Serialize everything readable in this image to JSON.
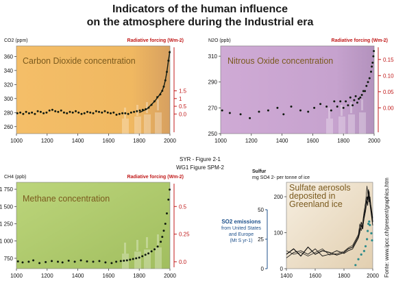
{
  "header": {
    "title_line1": "Indicators of the human influence",
    "title_line2": "on the atmosphere during the Industrial era"
  },
  "center_note": {
    "line1": "SYR - Figure 2-1",
    "line2": "WG1 Figure SPM-2"
  },
  "source_note": "Fonte: www.ipcc.ch/present/graphics.htm",
  "colors": {
    "co2_bg": "#f1b962",
    "n2o_bg": "#c7a3cf",
    "ch4_bg": "#b6cf72",
    "sulfate_bg": "#eddfc9",
    "forcing_axis": "#c01818",
    "emissions_axis": "#1c4f8a",
    "points": "#101a10"
  },
  "chart_data": [
    {
      "id": "co2",
      "type": "scatter",
      "title": "Carbon Dioxide concentration",
      "ylabel": "CO2 (ppm)",
      "ylabel_right": "Radiative forcing (Wm-2)",
      "xlim": [
        1000,
        2000
      ],
      "ylim": [
        250,
        375
      ],
      "x_ticks": [
        "1000",
        "1200",
        "1400",
        "1600",
        "1800",
        "2000"
      ],
      "y_ticks": [
        260,
        280,
        300,
        320,
        340,
        360
      ],
      "y2_ticks": [
        0.0,
        0.5,
        1.0,
        1.5
      ],
      "y2_zero_at": 278,
      "y2_scale": 22,
      "x": [
        1006,
        1025,
        1044,
        1063,
        1082,
        1101,
        1120,
        1139,
        1158,
        1177,
        1196,
        1215,
        1234,
        1253,
        1272,
        1291,
        1310,
        1329,
        1348,
        1367,
        1386,
        1405,
        1424,
        1443,
        1462,
        1481,
        1500,
        1519,
        1538,
        1557,
        1576,
        1595,
        1614,
        1633,
        1652,
        1671,
        1690,
        1709,
        1728,
        1747,
        1766,
        1785,
        1804,
        1823,
        1842,
        1861,
        1880,
        1899,
        1918,
        1937,
        1950,
        1960,
        1970,
        1980,
        1990,
        1998
      ],
      "y": [
        279,
        280,
        278,
        281,
        279,
        280,
        278,
        282,
        281,
        279,
        280,
        283,
        284,
        282,
        281,
        283,
        280,
        279,
        281,
        280,
        282,
        280,
        278,
        279,
        281,
        280,
        279,
        282,
        281,
        280,
        282,
        280,
        279,
        280,
        277,
        278,
        279,
        279,
        278,
        280,
        281,
        282,
        283,
        284,
        285,
        287,
        291,
        296,
        302,
        306,
        311,
        317,
        326,
        338,
        354,
        366
      ],
      "line_x": [
        1800,
        1850,
        1900,
        1925,
        1950,
        1960,
        1970,
        1980,
        1990,
        2000
      ],
      "line_y": [
        280,
        285,
        296,
        303,
        311,
        317,
        326,
        338,
        354,
        368
      ]
    },
    {
      "id": "n2o",
      "type": "scatter",
      "title": "Nitrous Oxide concentration",
      "ylabel": "N2O (ppb)",
      "ylabel_right": "Radiative forcing (Wm-2)",
      "xlim": [
        1000,
        2000
      ],
      "ylim": [
        250,
        318
      ],
      "x_ticks": [
        "1000",
        "1200",
        "1400",
        "1600",
        "1800",
        "2000"
      ],
      "y_ticks": [
        250,
        270,
        290,
        310
      ],
      "y2_ticks": [
        0.0,
        0.05,
        0.1,
        0.15
      ],
      "y2_zero_at": 270,
      "y2_scale": 250,
      "x": [
        1010,
        1060,
        1130,
        1190,
        1250,
        1310,
        1370,
        1410,
        1460,
        1520,
        1570,
        1610,
        1650,
        1690,
        1720,
        1740,
        1760,
        1780,
        1800,
        1815,
        1830,
        1845,
        1860,
        1870,
        1880,
        1890,
        1900,
        1910,
        1920,
        1930,
        1940,
        1950,
        1960,
        1970,
        1980,
        1985,
        1990,
        1995,
        1998
      ],
      "y": [
        268,
        266,
        265,
        262,
        267,
        268,
        270,
        265,
        271,
        268,
        267,
        270,
        273,
        271,
        268,
        275,
        271,
        275,
        270,
        275,
        272,
        278,
        272,
        276,
        279,
        274,
        277,
        278,
        280,
        283,
        283,
        287,
        290,
        293,
        298,
        302,
        305,
        310,
        314
      ]
    },
    {
      "id": "ch4",
      "type": "scatter",
      "title": "Methane concentration",
      "ylabel": "CH4 (ppb)",
      "ylabel_right": "Radiative forcing (Wm-2)",
      "xlim": [
        1000,
        2000
      ],
      "ylim": [
        600,
        1850
      ],
      "x_ticks": [
        "1000",
        "1200",
        "1400",
        "1600",
        "1800",
        "2000"
      ],
      "y_ticks": [
        "750",
        "1 000",
        "1 250",
        "1 500",
        "1 750"
      ],
      "y_tick_values": [
        750,
        1000,
        1250,
        1500,
        1750
      ],
      "y2_ticks": [
        0.0,
        0.25,
        0.5
      ],
      "y2_zero_at": 700,
      "y2_scale": 1600,
      "x": [
        1010,
        1040,
        1080,
        1110,
        1150,
        1190,
        1230,
        1270,
        1300,
        1340,
        1380,
        1420,
        1460,
        1500,
        1540,
        1580,
        1620,
        1650,
        1680,
        1700,
        1720,
        1740,
        1760,
        1780,
        1800,
        1820,
        1840,
        1860,
        1880,
        1900,
        1920,
        1940,
        1950,
        1960,
        1970,
        1980,
        1990,
        1998
      ],
      "y": [
        705,
        690,
        700,
        720,
        680,
        695,
        710,
        700,
        690,
        715,
        700,
        720,
        705,
        700,
        710,
        690,
        680,
        700,
        710,
        715,
        720,
        730,
        740,
        750,
        760,
        780,
        800,
        820,
        850,
        880,
        920,
        990,
        1060,
        1150,
        1250,
        1400,
        1600,
        1745
      ]
    },
    {
      "id": "sulfate",
      "type": "line",
      "title": "Sulfate aerosols deposited in Greenland ice",
      "ylabel": "Sulfur mg SO4 2- per tonne of ice",
      "y2label": "SO2 emissions from United States and Europe (Mt S yr-1)",
      "xlim": [
        1400,
        2000
      ],
      "ylim": [
        0,
        240
      ],
      "x_ticks": [
        "1400",
        "1600",
        "1800",
        "2000"
      ],
      "y_ticks": [
        0,
        100,
        200
      ],
      "y2_ticks": [
        0,
        25,
        50
      ],
      "y2_max": 50,
      "series": [
        {
          "x": [
            1400,
            1450,
            1500,
            1550,
            1600,
            1650,
            1700,
            1750,
            1800,
            1830,
            1860,
            1880,
            1900,
            1910,
            1920,
            1930,
            1940,
            1950,
            1960,
            1965,
            1970,
            1975,
            1980,
            1990,
            2000
          ],
          "y": [
            40,
            55,
            35,
            60,
            40,
            50,
            45,
            38,
            45,
            55,
            60,
            75,
            90,
            110,
            120,
            110,
            150,
            170,
            200,
            190,
            220,
            185,
            200,
            160,
            130
          ]
        },
        {
          "x": [
            1400,
            1450,
            1500,
            1550,
            1600,
            1650,
            1700,
            1750,
            1800,
            1830,
            1860,
            1880,
            1900,
            1910,
            1920,
            1930,
            1940,
            1950,
            1960,
            1965,
            1970,
            1975,
            1980,
            1990,
            2000
          ],
          "y": [
            30,
            45,
            50,
            40,
            55,
            35,
            40,
            50,
            42,
            50,
            55,
            70,
            85,
            100,
            130,
            115,
            140,
            160,
            190,
            175,
            205,
            200,
            180,
            150,
            120
          ]
        },
        {
          "x": [
            1400,
            1450,
            1500,
            1550,
            1600,
            1650,
            1700,
            1750,
            1800,
            1830,
            1860,
            1880,
            1900,
            1910,
            1920,
            1930,
            1940,
            1950,
            1960,
            1965,
            1970,
            1975,
            1980,
            1990,
            2000
          ],
          "y": [
            50,
            40,
            45,
            35,
            45,
            55,
            38,
            42,
            48,
            58,
            65,
            80,
            95,
            125,
            105,
            130,
            160,
            185,
            230,
            210,
            195,
            215,
            190,
            170,
            140
          ]
        }
      ],
      "emissions": {
        "x": [
          1880,
          1900,
          1920,
          1940,
          1950,
          1960,
          1965,
          1970,
          1975,
          1980,
          1990,
          1995
        ],
        "y": [
          3,
          8,
          12,
          15,
          19,
          25,
          32,
          38,
          40,
          37,
          30,
          24
        ]
      }
    }
  ]
}
